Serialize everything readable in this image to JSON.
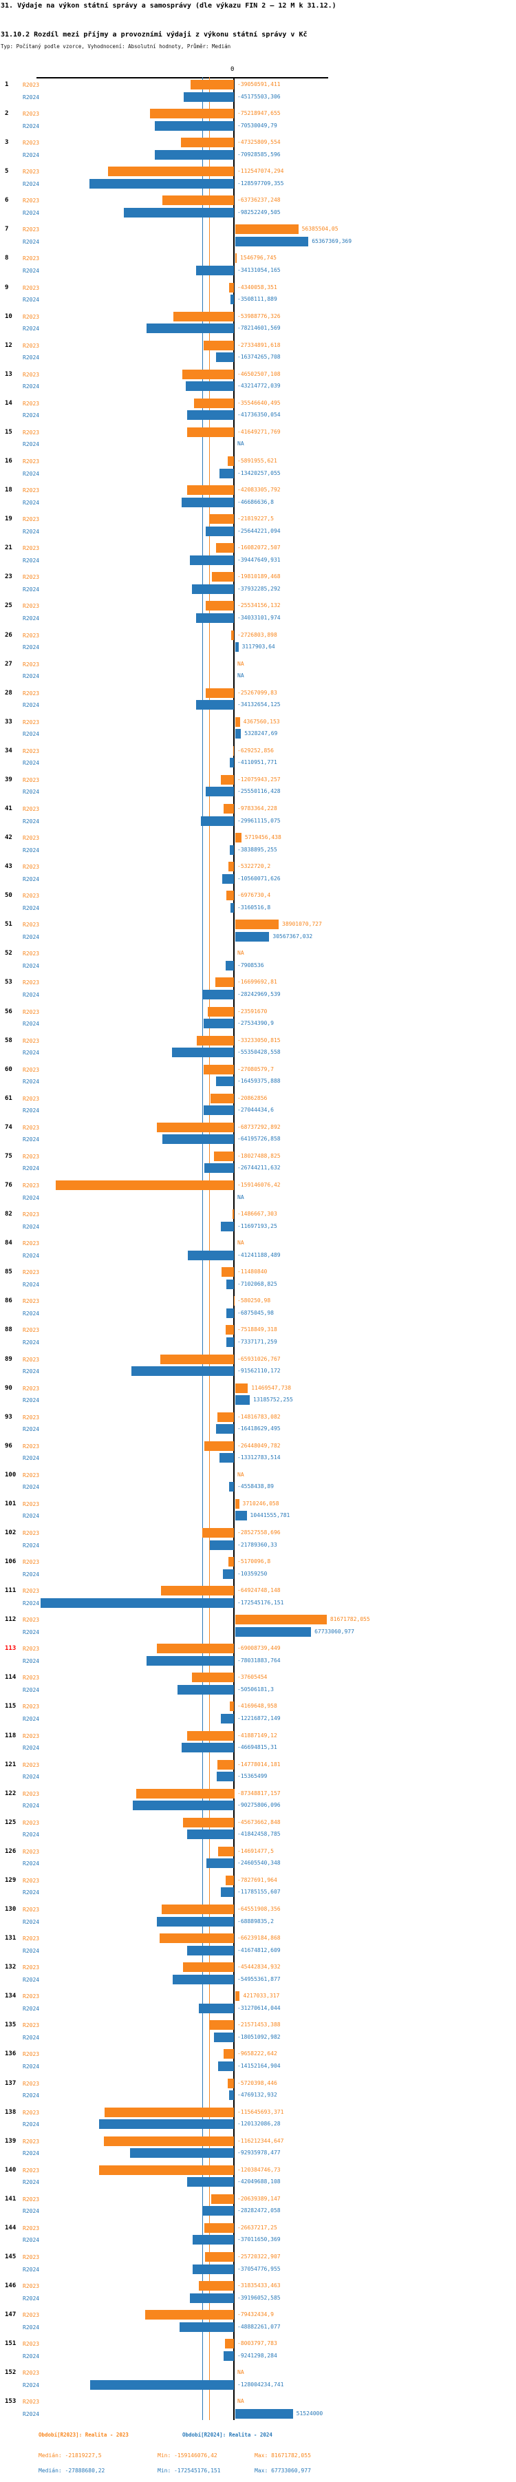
{
  "header": {
    "title": "31. Výdaje na výkon státní správy a samosprávy (dle výkazu FIN 2 – 12 M k 31.12.)",
    "subtitle": "31.10.2 Rozdíl mezi příjmy a provozními výdaji z výkonu státní správy v Kč",
    "meta": "Typ: Počítaný podle vzorce, Vyhodnocení: Absolutní hodnoty, Průměr: Medián"
  },
  "chart_data": {
    "type": "bar",
    "orientation": "horizontal",
    "title": "31.10.2 Rozdíl mezi příjmy a provozními výdaji z výkonu státní správy v Kč",
    "series_names": [
      "R2023",
      "R2024"
    ],
    "na_text": "NA",
    "zero_label": "0",
    "xlim": [
      -180000000,
      90000000
    ],
    "grid": "off",
    "legend_position": "bottom",
    "colors": {
      "r2023": "#F8861D",
      "r2024": "#2878B8",
      "highlight_row": "#ff0000",
      "axis": "#000000"
    },
    "stats": {
      "r2023": {
        "median": "-21819227,5",
        "min": "-159146076,42",
        "max": "81671782,055"
      },
      "r2024": {
        "median": "-27888680,22",
        "min": "-172545176,151",
        "max": "67733060,977"
      }
    },
    "rows": [
      {
        "id": "1",
        "r2023": "-39050591,411",
        "r2024": "-45175503,306"
      },
      {
        "id": "2",
        "r2023": "-75218947,655",
        "r2024": "-70530049,79"
      },
      {
        "id": "3",
        "r2023": "-47325809,554",
        "r2024": "-70928585,596"
      },
      {
        "id": "5",
        "r2023": "-112547074,294",
        "r2024": "-128597709,355"
      },
      {
        "id": "6",
        "r2023": "-63736237,248",
        "r2024": "-98252249,505"
      },
      {
        "id": "7",
        "r2023": "56385504,05",
        "r2024": "65367369,369"
      },
      {
        "id": "8",
        "r2023": "1546796,745",
        "r2024": "-34131054,165"
      },
      {
        "id": "9",
        "r2023": "-4340058,351",
        "r2024": "-3508111,889"
      },
      {
        "id": "10",
        "r2023": "-53988776,326",
        "r2024": "-78214601,569"
      },
      {
        "id": "12",
        "r2023": "-27334891,618",
        "r2024": "-16374265,708"
      },
      {
        "id": "13",
        "r2023": "-46502507,108",
        "r2024": "-43214772,039"
      },
      {
        "id": "14",
        "r2023": "-35546640,495",
        "r2024": "-41736350,054"
      },
      {
        "id": "15",
        "r2023": "-41649271,769",
        "r2024": "NA"
      },
      {
        "id": "16",
        "r2023": "-5891955,621",
        "r2024": "-13420257,055"
      },
      {
        "id": "18",
        "r2023": "-42083305,792",
        "r2024": "-46686636,8"
      },
      {
        "id": "19",
        "r2023": "-21819227,5",
        "r2024": "-25644221,094"
      },
      {
        "id": "21",
        "r2023": "-16082072,507",
        "r2024": "-39447649,931"
      },
      {
        "id": "23",
        "r2023": "-19810189,468",
        "r2024": "-37932285,292"
      },
      {
        "id": "25",
        "r2023": "-25534156,132",
        "r2024": "-34033101,974"
      },
      {
        "id": "26",
        "r2023": "-2726803,898",
        "r2024": "3117903,64"
      },
      {
        "id": "27",
        "r2023": "NA",
        "r2024": "NA"
      },
      {
        "id": "28",
        "r2023": "-25267099,83",
        "r2024": "-34132654,125"
      },
      {
        "id": "33",
        "r2023": "4367560,153",
        "r2024": "5328247,69"
      },
      {
        "id": "34",
        "r2023": "-629252,856",
        "r2024": "-4110951,771"
      },
      {
        "id": "39",
        "r2023": "-12075943,257",
        "r2024": "-25550116,428"
      },
      {
        "id": "41",
        "r2023": "-9783364,228",
        "r2024": "-29961115,075"
      },
      {
        "id": "42",
        "r2023": "5719456,438",
        "r2024": "-3838895,255"
      },
      {
        "id": "43",
        "r2023": "-5322720,2",
        "r2024": "-10560071,626"
      },
      {
        "id": "50",
        "r2023": "-6976730,4",
        "r2024": "-3160516,8"
      },
      {
        "id": "51",
        "r2023": "38901070,727",
        "r2024": "30567367,032"
      },
      {
        "id": "52",
        "r2023": "NA",
        "r2024": "-7908536"
      },
      {
        "id": "53",
        "r2023": "-16699692,81",
        "r2024": "-28242969,539"
      },
      {
        "id": "56",
        "r2023": "-23591670",
        "r2024": "-27534390,9"
      },
      {
        "id": "58",
        "r2023": "-33233050,815",
        "r2024": "-55350428,558"
      },
      {
        "id": "60",
        "r2023": "-27080579,7",
        "r2024": "-16459375,888"
      },
      {
        "id": "61",
        "r2023": "-20862856",
        "r2024": "-27044434,6"
      },
      {
        "id": "74",
        "r2023": "-68737292,892",
        "r2024": "-64195726,858"
      },
      {
        "id": "75",
        "r2023": "-18027488,825",
        "r2024": "-26744211,632"
      },
      {
        "id": "76",
        "r2023": "-159146076,42",
        "r2024": "NA"
      },
      {
        "id": "82",
        "r2023": "-1486667,303",
        "r2024": "-11697193,25"
      },
      {
        "id": "84",
        "r2023": "NA",
        "r2024": "-41241188,489"
      },
      {
        "id": "85",
        "r2023": "-11480840",
        "r2024": "-7102068,825"
      },
      {
        "id": "86",
        "r2023": "-580250,98",
        "r2024": "-6875045,98"
      },
      {
        "id": "88",
        "r2023": "-7518849,318",
        "r2024": "-7337171,259"
      },
      {
        "id": "89",
        "r2023": "-65931026,767",
        "r2024": "-91562110,172"
      },
      {
        "id": "90",
        "r2023": "11469547,738",
        "r2024": "13185752,255"
      },
      {
        "id": "93",
        "r2023": "-14816783,082",
        "r2024": "-16418629,495"
      },
      {
        "id": "96",
        "r2023": "-26448049,782",
        "r2024": "-13312783,514"
      },
      {
        "id": "100",
        "r2023": "NA",
        "r2024": "-4558438,89"
      },
      {
        "id": "101",
        "r2023": "3710246,058",
        "r2024": "10441555,781"
      },
      {
        "id": "102",
        "r2023": "-28527558,696",
        "r2024": "-21789360,33"
      },
      {
        "id": "106",
        "r2023": "-5170096,8",
        "r2024": "-10359250"
      },
      {
        "id": "111",
        "r2023": "-64924748,148",
        "r2024": "-172545176,151"
      },
      {
        "id": "112",
        "r2023": "81671782,055",
        "r2024": "67733060,977"
      },
      {
        "id": "113",
        "r2023": "-69008739,449",
        "r2024": "-78031883,764",
        "highlight": true
      },
      {
        "id": "114",
        "r2023": "-37605454",
        "r2024": "-50506181,3"
      },
      {
        "id": "115",
        "r2023": "-4169648,958",
        "r2024": "-12216872,149"
      },
      {
        "id": "118",
        "r2023": "-41887149,12",
        "r2024": "-46694815,31"
      },
      {
        "id": "121",
        "r2023": "-14778014,181",
        "r2024": "-15365499"
      },
      {
        "id": "122",
        "r2023": "-87348817,157",
        "r2024": "-90275806,096"
      },
      {
        "id": "125",
        "r2023": "-45673662,848",
        "r2024": "-41842458,785"
      },
      {
        "id": "126",
        "r2023": "-14691477,5",
        "r2024": "-24605540,348"
      },
      {
        "id": "129",
        "r2023": "-7827691,964",
        "r2024": "-11785155,607"
      },
      {
        "id": "130",
        "r2023": "-64551908,356",
        "r2024": "-68889835,2"
      },
      {
        "id": "131",
        "r2023": "-66239184,868",
        "r2024": "-41674812,609"
      },
      {
        "id": "132",
        "r2023": "-45442834,932",
        "r2024": "-54955361,877"
      },
      {
        "id": "134",
        "r2023": "4217033,317",
        "r2024": "-31270614,044"
      },
      {
        "id": "135",
        "r2023": "-21571453,388",
        "r2024": "-18051092,982"
      },
      {
        "id": "136",
        "r2023": "-9658222,642",
        "r2024": "-14152164,904"
      },
      {
        "id": "137",
        "r2023": "-5720398,446",
        "r2024": "-4769132,932"
      },
      {
        "id": "138",
        "r2023": "-115645693,371",
        "r2024": "-120132086,28"
      },
      {
        "id": "139",
        "r2023": "-116212344,647",
        "r2024": "-92935978,477"
      },
      {
        "id": "140",
        "r2023": "-120384746,73",
        "r2024": "-42049688,108"
      },
      {
        "id": "141",
        "r2023": "-20639389,147",
        "r2024": "-28282472,058"
      },
      {
        "id": "144",
        "r2023": "-26637217,25",
        "r2024": "-37011650,369"
      },
      {
        "id": "145",
        "r2023": "-25720322,907",
        "r2024": "-37054776,955"
      },
      {
        "id": "146",
        "r2023": "-31835433,463",
        "r2024": "-39196052,585"
      },
      {
        "id": "147",
        "r2023": "-79432434,9",
        "r2024": "-48882261,077"
      },
      {
        "id": "151",
        "r2023": "-8003797,783",
        "r2024": "-9241298,284"
      },
      {
        "id": "152",
        "r2023": "NA",
        "r2024": "-128004234,741"
      },
      {
        "id": "153",
        "r2023": "NA",
        "r2024": "51524000"
      }
    ]
  },
  "footer": {
    "legend_r2023": "Období[R2023]: Realita - 2023",
    "legend_r2024": "Období[R2024]: Realita - 2024",
    "stats_r2023": {
      "median": "Medián: -21819227,5",
      "min": "Min: -159146076,42",
      "max": "Max: 81671782,055"
    },
    "stats_r2024": {
      "median": "Medián: -27888680,22",
      "min": "Min: -172545176,151",
      "max": "Max: 67733060,977"
    }
  }
}
